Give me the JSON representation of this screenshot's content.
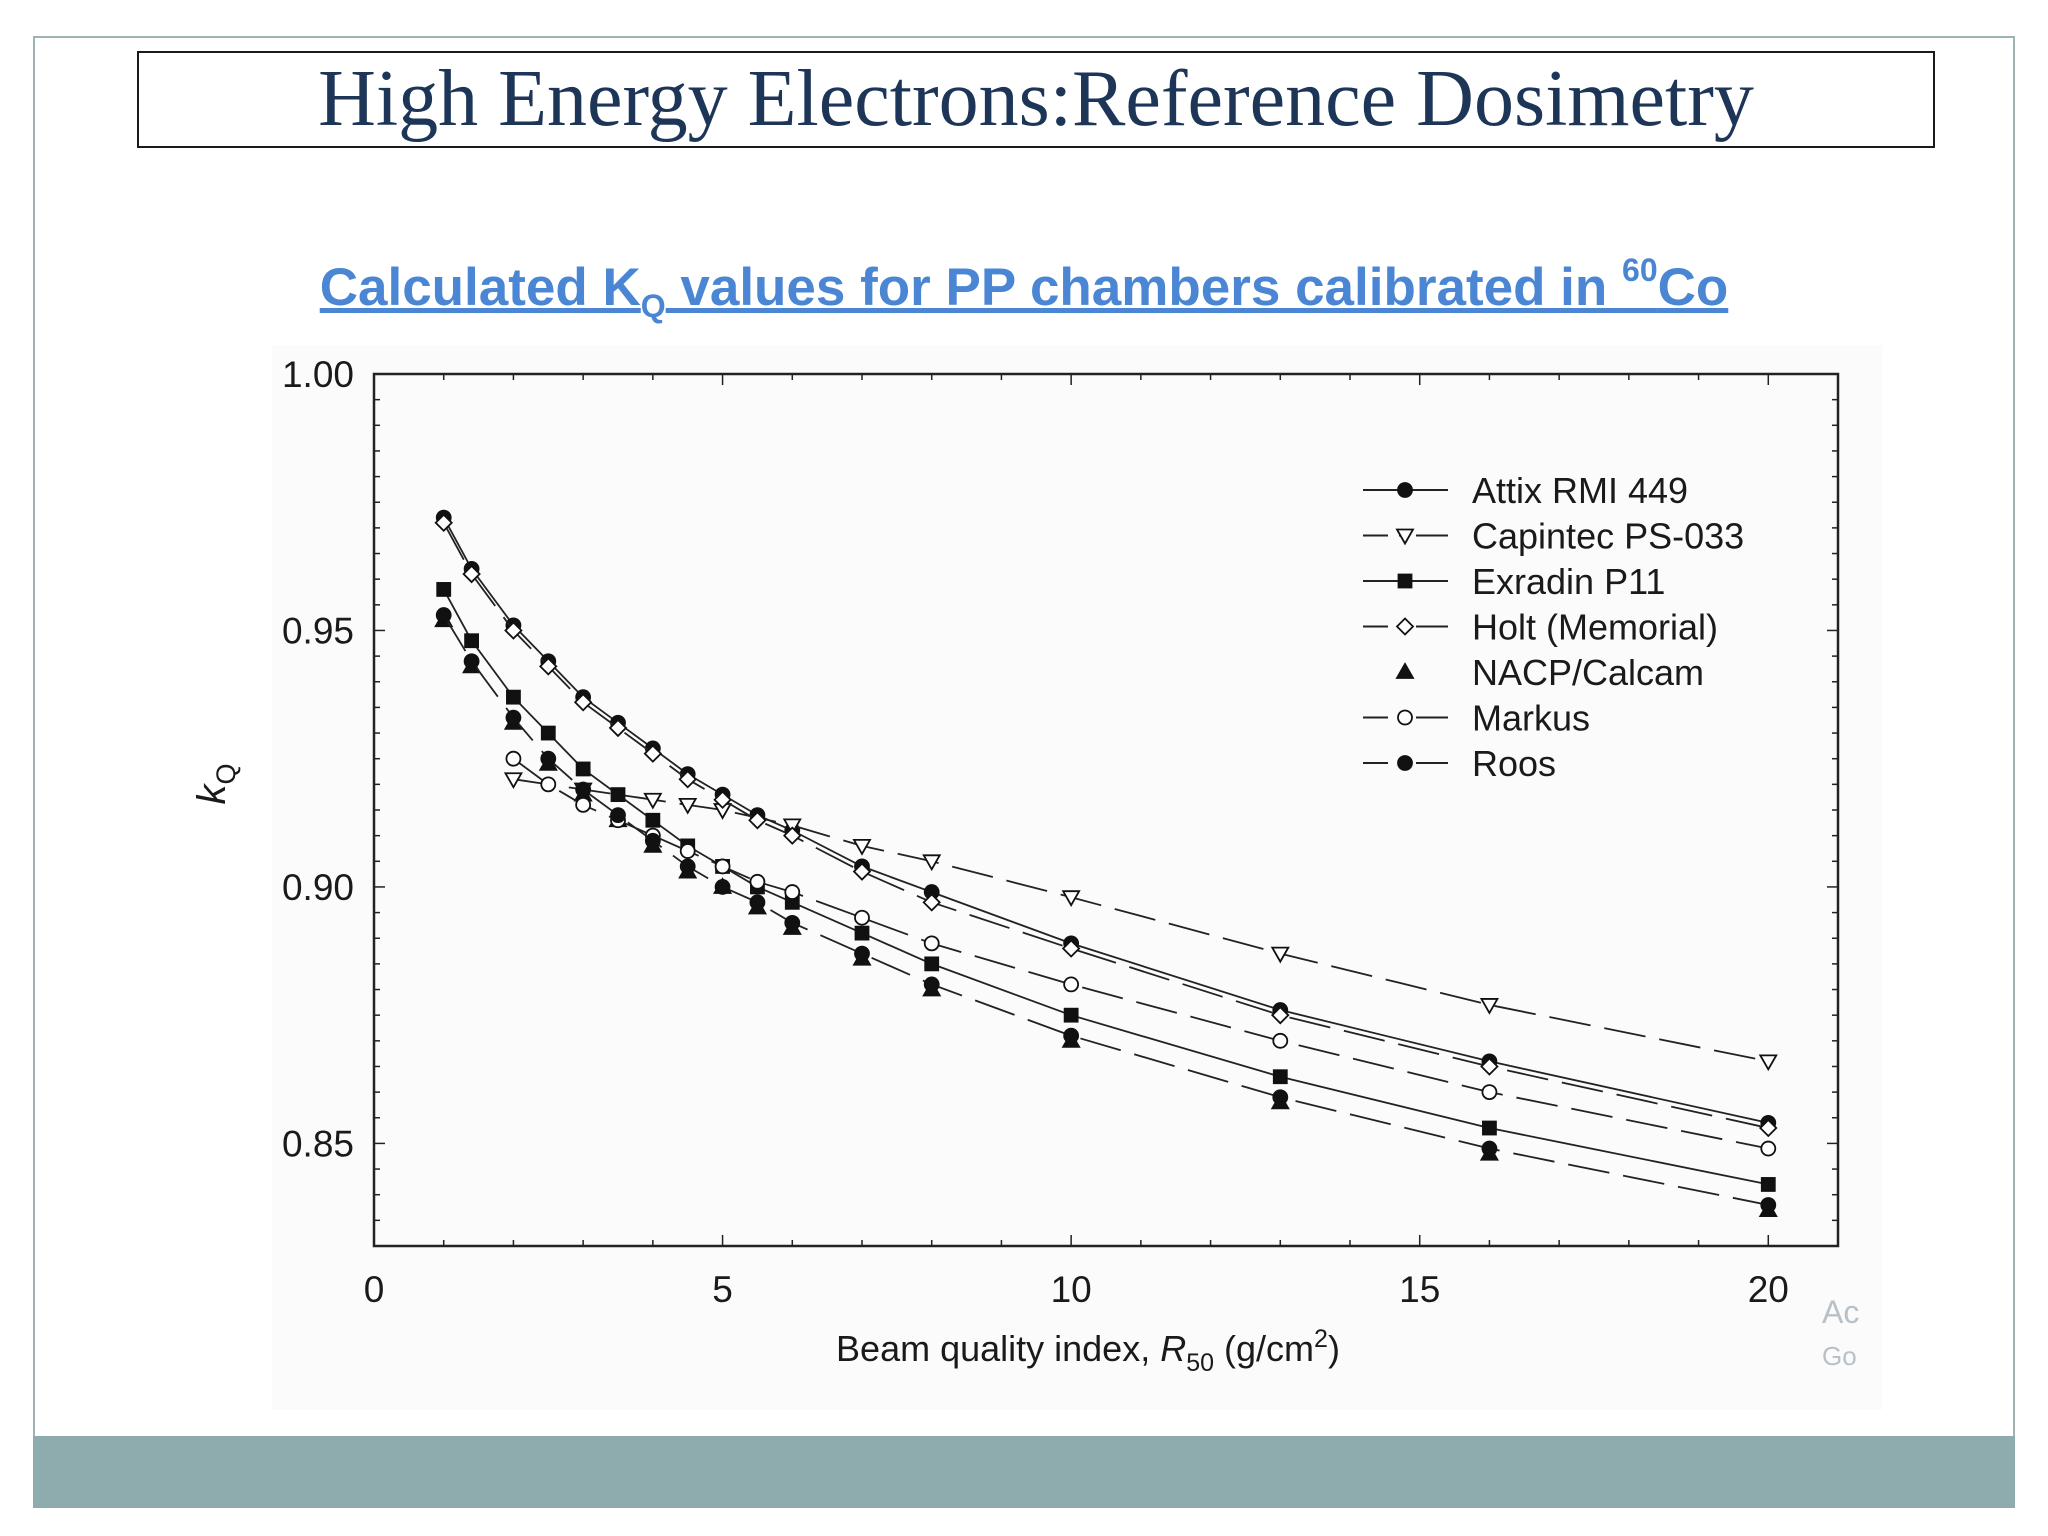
{
  "slide": {
    "title": "High Energy Electrons:Reference Dosimetry",
    "subtitle": {
      "pre": "Calculated K",
      "sub": "Q",
      "mid": " values for PP chambers calibrated in ",
      "sup": "60",
      "post": "Co"
    },
    "watermark": [
      "Ac",
      "Go"
    ],
    "colors": {
      "title": "#1d3557",
      "subtitle": "#4a86d4",
      "footer": "#8eabad",
      "frame": "#9fb3b4"
    }
  },
  "chart_data": {
    "type": "line",
    "title": "Calculated KQ values for PP chambers calibrated in 60Co",
    "xlabel": {
      "pre": "Beam quality index, ",
      "italic": "R",
      "sub": "50",
      "mid": " (g/cm",
      "sup": "2",
      "post": ")"
    },
    "ylabel": {
      "main": "k",
      "sub": "Q"
    },
    "xlim": [
      0,
      21
    ],
    "ylim": [
      0.83,
      1.0
    ],
    "xticks": [
      0,
      5,
      10,
      15,
      20
    ],
    "xtick_labels": [
      "0",
      "5",
      "10",
      "15",
      "20"
    ],
    "yticks": [
      0.85,
      0.9,
      0.95,
      1.0
    ],
    "ytick_labels": [
      "0.85",
      "0.90",
      "0.95",
      "1.00"
    ],
    "legend_position": "top-right",
    "series": [
      {
        "name": "Attix RMI 449",
        "marker": "circle-filled",
        "dash": "solid",
        "x": [
          1,
          1.4,
          2,
          2.5,
          3,
          3.5,
          4,
          4.5,
          5,
          5.5,
          6,
          7,
          8,
          10,
          13,
          16,
          20
        ],
        "y": [
          0.972,
          0.962,
          0.951,
          0.944,
          0.937,
          0.932,
          0.927,
          0.922,
          0.918,
          0.914,
          0.911,
          0.904,
          0.899,
          0.889,
          0.876,
          0.866,
          0.854
        ]
      },
      {
        "name": "Capintec PS-033",
        "marker": "triangle-down-open",
        "dash": "long-dash",
        "x": [
          2,
          3,
          4,
          4.5,
          5,
          6,
          7,
          8,
          10,
          13,
          16,
          20
        ],
        "y": [
          0.921,
          0.919,
          0.917,
          0.916,
          0.915,
          0.912,
          0.908,
          0.905,
          0.898,
          0.887,
          0.877,
          0.866
        ]
      },
      {
        "name": "Exradin P11",
        "marker": "square-filled",
        "dash": "solid",
        "x": [
          1,
          1.4,
          2,
          2.5,
          3,
          3.5,
          4,
          4.5,
          5,
          5.5,
          6,
          7,
          8,
          10,
          13,
          16,
          20
        ],
        "y": [
          0.958,
          0.948,
          0.937,
          0.93,
          0.923,
          0.918,
          0.913,
          0.908,
          0.904,
          0.9,
          0.897,
          0.891,
          0.885,
          0.875,
          0.863,
          0.853,
          0.842
        ]
      },
      {
        "name": "Holt (Memorial)",
        "marker": "diamond-open",
        "dash": "long-dash",
        "x": [
          1,
          1.4,
          2,
          2.5,
          3,
          3.5,
          4,
          4.5,
          5,
          5.5,
          6,
          7,
          8,
          10,
          13,
          16,
          20
        ],
        "y": [
          0.971,
          0.961,
          0.95,
          0.943,
          0.936,
          0.931,
          0.926,
          0.921,
          0.917,
          0.913,
          0.91,
          0.903,
          0.897,
          0.888,
          0.875,
          0.865,
          0.853
        ]
      },
      {
        "name": "NACP/Calcam",
        "marker": "triangle-up-filled",
        "dash": "solid",
        "x": [
          1,
          1.4,
          2,
          2.5,
          3,
          3.5,
          4,
          4.5,
          5,
          5.5,
          6,
          7,
          8,
          10,
          13,
          16,
          20
        ],
        "y": [
          0.952,
          0.943,
          0.932,
          0.924,
          0.918,
          0.913,
          0.908,
          0.903,
          0.9,
          0.896,
          0.892,
          0.886,
          0.88,
          0.87,
          0.858,
          0.848,
          0.837
        ]
      },
      {
        "name": "Markus",
        "marker": "circle-open",
        "dash": "long-dash",
        "x": [
          2,
          2.5,
          3,
          3.5,
          4,
          4.5,
          5,
          5.5,
          6,
          7,
          8,
          10,
          13,
          16,
          20
        ],
        "y": [
          0.925,
          0.92,
          0.916,
          0.913,
          0.91,
          0.907,
          0.904,
          0.901,
          0.899,
          0.894,
          0.889,
          0.881,
          0.87,
          0.86,
          0.849
        ]
      },
      {
        "name": "Roos",
        "marker": "circle-filled",
        "dash": "long-dash",
        "x": [
          1,
          1.4,
          2,
          2.5,
          3,
          3.5,
          4,
          4.5,
          5,
          5.5,
          6,
          7,
          8,
          10,
          13,
          16,
          20
        ],
        "y": [
          0.953,
          0.944,
          0.933,
          0.925,
          0.919,
          0.914,
          0.909,
          0.904,
          0.9,
          0.897,
          0.893,
          0.887,
          0.881,
          0.871,
          0.859,
          0.849,
          0.838
        ]
      }
    ]
  }
}
